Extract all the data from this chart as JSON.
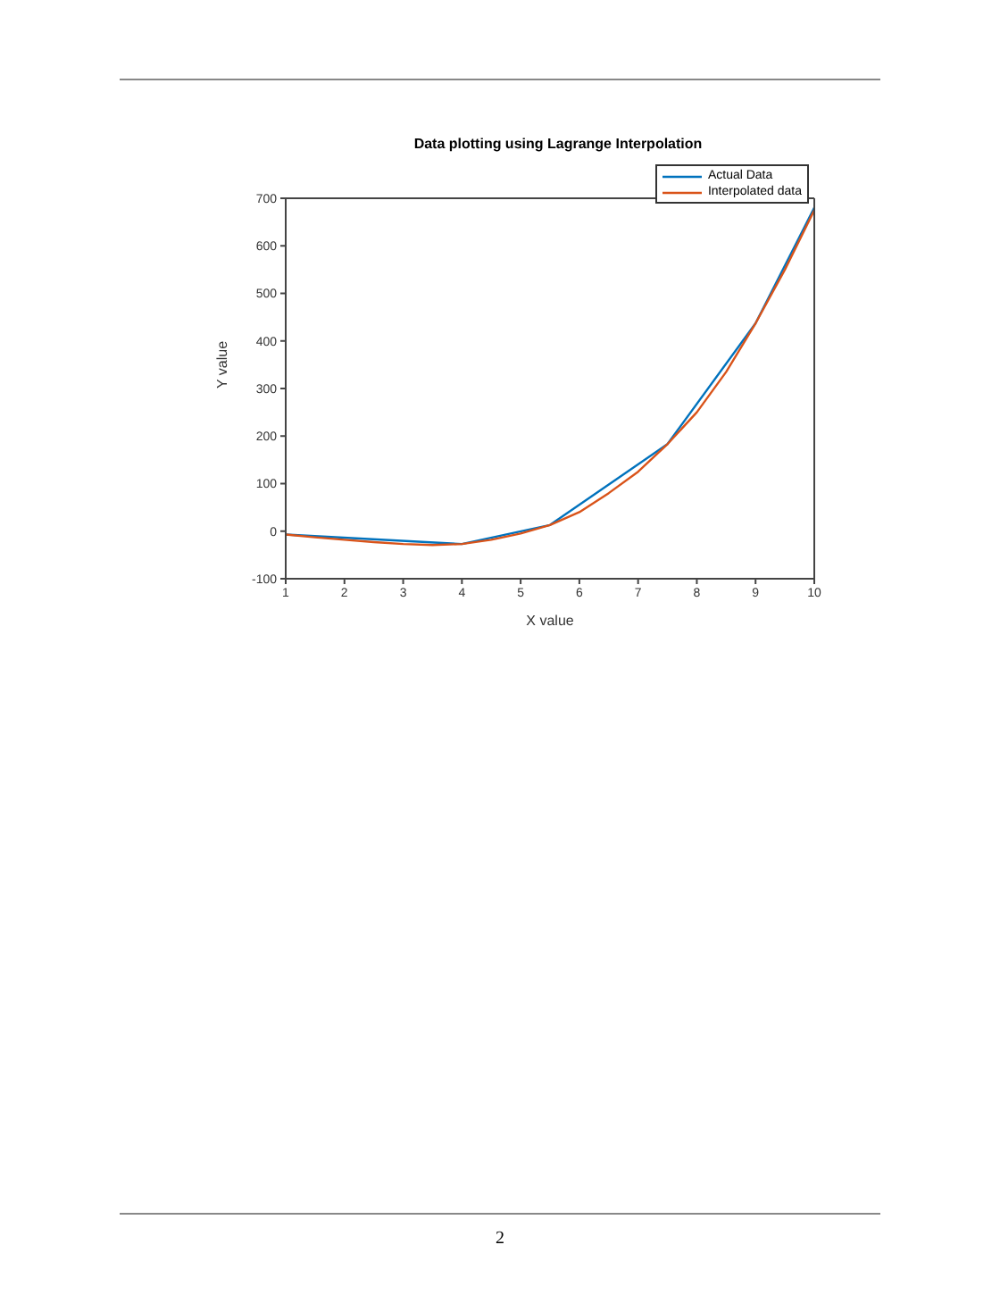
{
  "chart_data": {
    "type": "line",
    "title": "Data plotting using Lagrange Interpolation",
    "xlabel": "X value",
    "ylabel": "Y value",
    "xlim": [
      1,
      10
    ],
    "xticks": [
      1,
      2,
      3,
      4,
      5,
      6,
      7,
      8,
      9,
      10
    ],
    "ylim": [
      -100,
      700
    ],
    "yticks": [
      -100,
      0,
      100,
      200,
      300,
      400,
      500,
      600,
      700
    ],
    "legend": "top right",
    "marker": "none",
    "line_style": "solid",
    "series": [
      {
        "name": "Actual Data",
        "color": "#0072bd",
        "x": [
          1,
          4,
          5.5,
          7.5,
          9,
          10
        ],
        "values": [
          -7,
          -27,
          13,
          183,
          437,
          680
        ]
      },
      {
        "name": "Interpolated data",
        "color": "#d95319",
        "x": [
          1,
          1.5,
          2,
          2.5,
          3,
          3.5,
          4,
          4.5,
          5,
          5.5,
          6,
          6.5,
          7,
          7.5,
          8,
          8.5,
          9,
          9.5,
          10
        ],
        "values": [
          -7,
          -13,
          -18,
          -23,
          -27,
          -29,
          -27,
          -18,
          -5,
          13,
          40,
          80,
          125,
          183,
          250,
          335,
          437,
          550,
          675
        ]
      }
    ],
    "annotations": [
      "2"
    ]
  }
}
